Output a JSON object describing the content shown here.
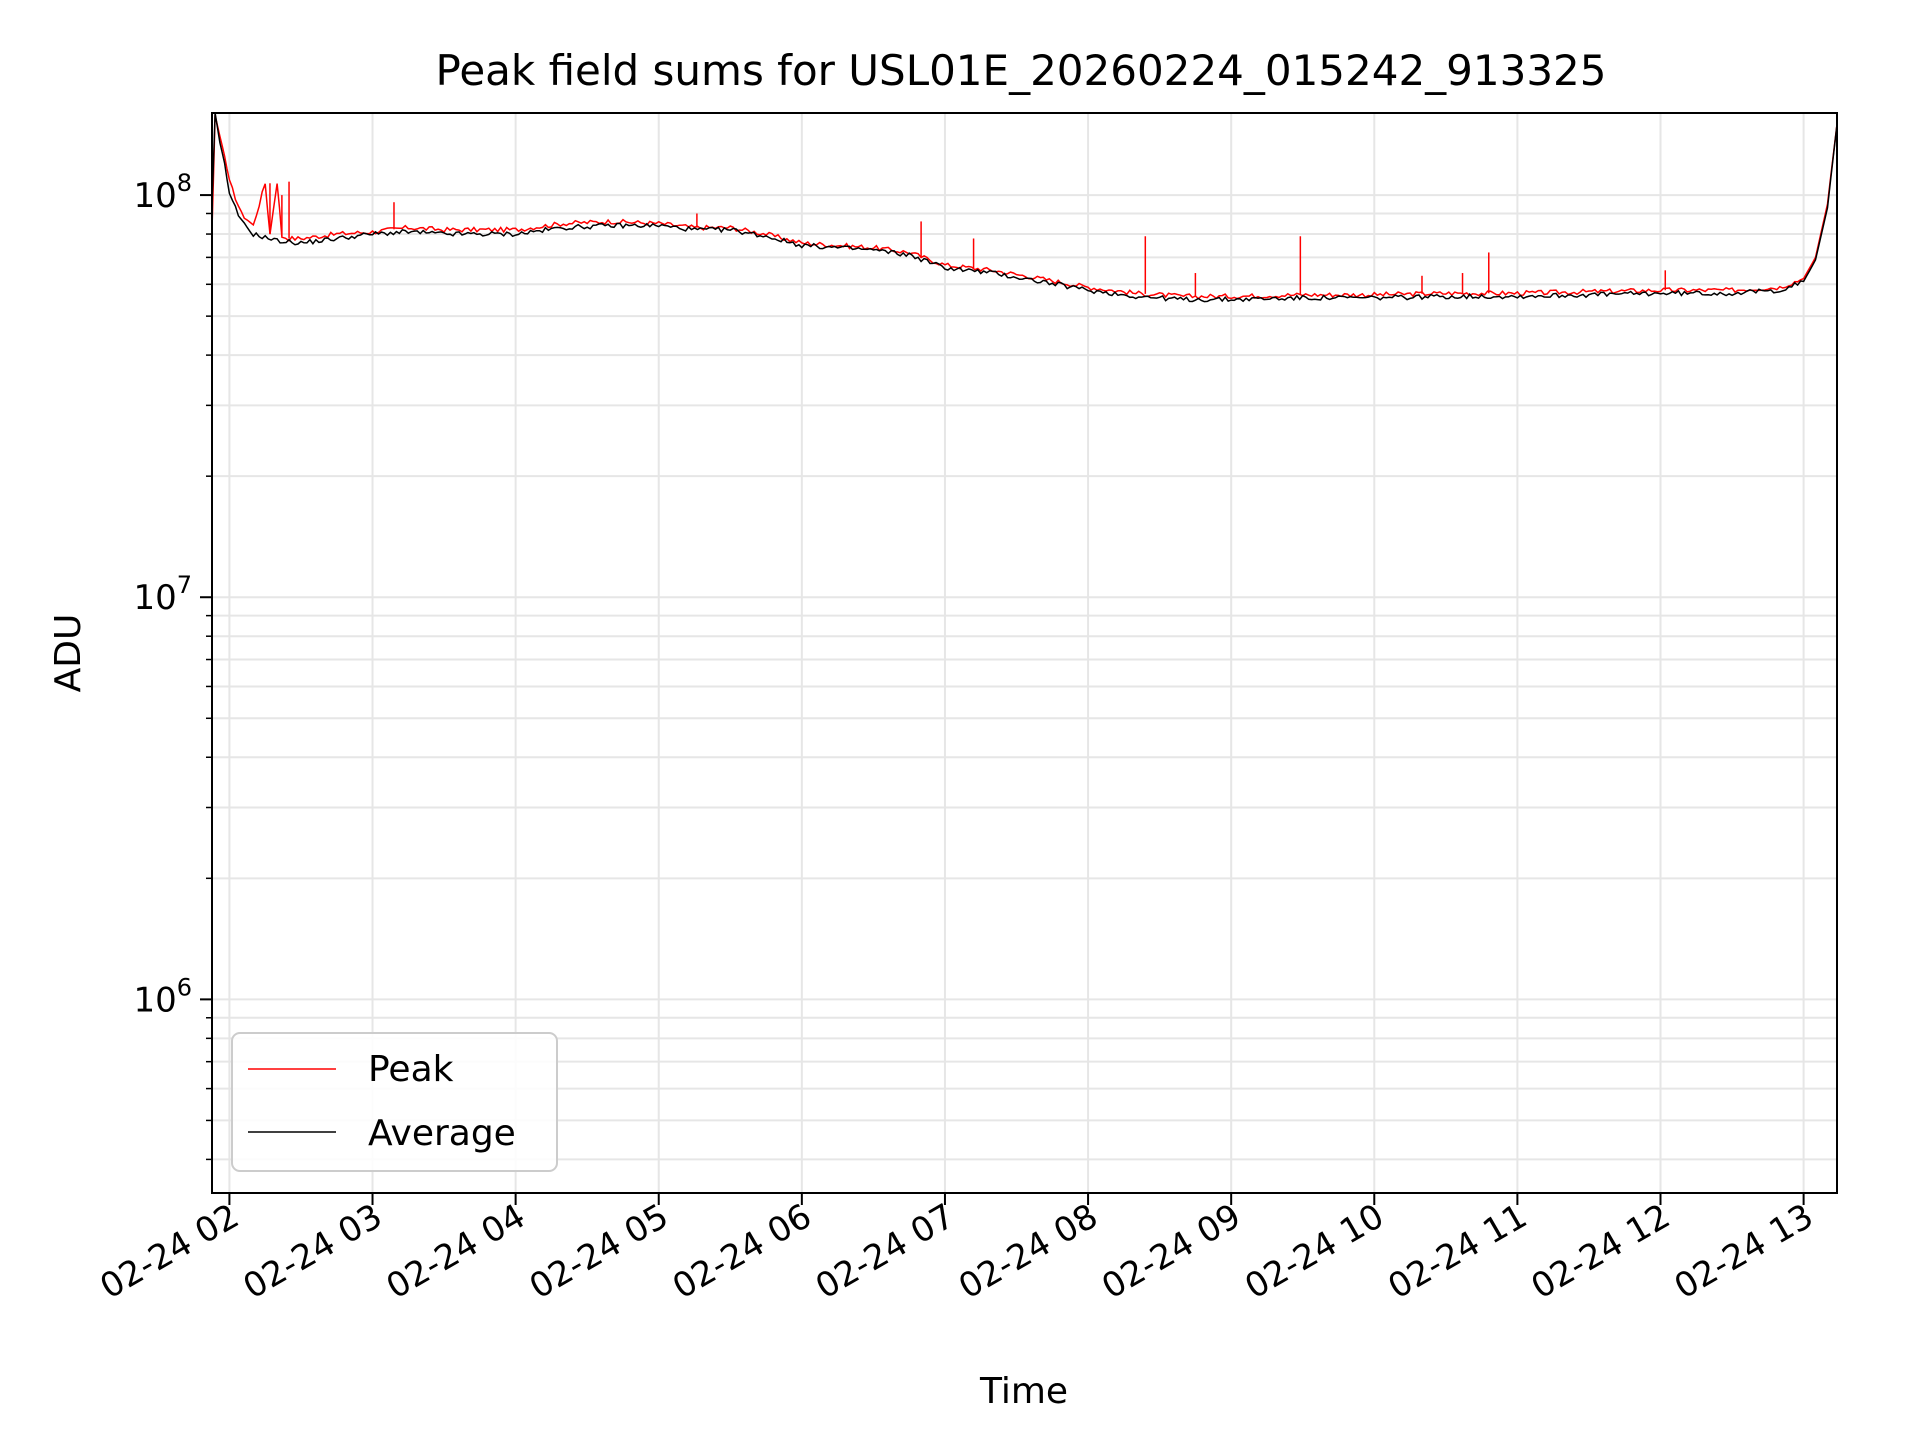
{
  "chart_data": {
    "type": "line",
    "title": "Peak field sums for USL01E_20260224_015242_913325",
    "xlabel": "Time",
    "ylabel": "ADU",
    "yscale": "log",
    "ylim": [
      330000,
      160000000
    ],
    "xlim": [
      "02-24 01:52:42",
      "02-24 13:14:00"
    ],
    "grid": true,
    "legend_position": "lower-left",
    "x_ticks": [
      "02-24 02",
      "02-24 03",
      "02-24 04",
      "02-24 05",
      "02-24 06",
      "02-24 07",
      "02-24 08",
      "02-24 09",
      "02-24 10",
      "02-24 11",
      "02-24 12",
      "02-24 13"
    ],
    "y_ticks": [
      {
        "base": "10",
        "exponent": "6",
        "value": 1000000
      },
      {
        "base": "10",
        "exponent": "7",
        "value": 10000000
      },
      {
        "base": "10",
        "exponent": "8",
        "value": 100000000
      }
    ],
    "series": [
      {
        "name": "Peak",
        "color": "#ff0000",
        "x": [
          "02-24 01:52:42",
          "02-24 01:54",
          "02-24 01:56",
          "02-24 01:58",
          "02-24 02:00",
          "02-24 02:05",
          "02-24 02:10",
          "02-24 02:15",
          "02-24 02:17",
          "02-24 02:20",
          "02-24 02:22",
          "02-24 02:25",
          "02-24 02:30",
          "02-24 02:45",
          "02-24 03:00",
          "02-24 03:15",
          "02-24 03:30",
          "02-24 04:00",
          "02-24 04:20",
          "02-24 04:40",
          "02-24 05:00",
          "02-24 05:15",
          "02-24 05:30",
          "02-24 05:45",
          "02-24 06:00",
          "02-24 06:15",
          "02-24 06:30",
          "02-24 06:45",
          "02-24 07:00",
          "02-24 07:20",
          "02-24 07:40",
          "02-24 08:00",
          "02-24 08:20",
          "02-24 08:40",
          "02-24 09:00",
          "02-24 09:30",
          "02-24 10:00",
          "02-24 10:30",
          "02-24 11:00",
          "02-24 11:30",
          "02-24 12:00",
          "02-24 12:30",
          "02-24 12:50",
          "02-24 13:00",
          "02-24 13:05",
          "02-24 13:10",
          "02-24 13:14"
        ],
        "y": [
          82000000,
          158000000,
          140000000,
          125000000,
          108000000,
          90000000,
          84000000,
          107000000,
          80000000,
          108000000,
          79000000,
          78000000,
          78000000,
          80000000,
          81000000,
          83000000,
          82000000,
          82000000,
          85000000,
          86000000,
          85000000,
          83000000,
          83000000,
          80000000,
          76000000,
          75000000,
          74000000,
          72000000,
          67000000,
          65000000,
          62000000,
          59000000,
          57000000,
          56000000,
          56000000,
          56500000,
          56500000,
          57000000,
          57000000,
          57500000,
          58000000,
          58000000,
          59000000,
          62000000,
          70000000,
          95000000,
          150000000
        ]
      },
      {
        "name": "Average",
        "color": "#000000",
        "x": [
          "02-24 01:52:42",
          "02-24 01:54",
          "02-24 01:56",
          "02-24 01:58",
          "02-24 02:00",
          "02-24 02:05",
          "02-24 02:10",
          "02-24 02:20",
          "02-24 02:30",
          "02-24 02:45",
          "02-24 03:00",
          "02-24 03:15",
          "02-24 03:30",
          "02-24 04:00",
          "02-24 04:20",
          "02-24 04:40",
          "02-24 05:00",
          "02-24 05:15",
          "02-24 05:30",
          "02-24 05:45",
          "02-24 06:00",
          "02-24 06:15",
          "02-24 06:30",
          "02-24 06:45",
          "02-24 07:00",
          "02-24 07:20",
          "02-24 07:40",
          "02-24 08:00",
          "02-24 08:20",
          "02-24 08:40",
          "02-24 09:00",
          "02-24 09:30",
          "02-24 10:00",
          "02-24 10:30",
          "02-24 11:00",
          "02-24 11:30",
          "02-24 12:00",
          "02-24 12:30",
          "02-24 12:50",
          "02-24 13:00",
          "02-24 13:05",
          "02-24 13:10",
          "02-24 13:14"
        ],
        "y": [
          95000000,
          160000000,
          135000000,
          120000000,
          100000000,
          86000000,
          80000000,
          77000000,
          76000000,
          78000000,
          80000000,
          81000000,
          80000000,
          80000000,
          83000000,
          84000000,
          84000000,
          82000000,
          82000000,
          79000000,
          75000000,
          74000000,
          73000000,
          71000000,
          66000000,
          64000000,
          61000000,
          58000000,
          56000000,
          55000000,
          55000000,
          55500000,
          55500000,
          56000000,
          56000000,
          56500000,
          57000000,
          57000000,
          58000000,
          61000000,
          69000000,
          93000000,
          150000000
        ]
      }
    ],
    "spikes": {
      "series": "Peak",
      "x": [
        "02-24 02:17",
        "02-24 02:22",
        "02-24 02:25",
        "02-24 03:09",
        "02-24 05:16",
        "02-24 06:50",
        "02-24 07:12",
        "02-24 08:24",
        "02-24 08:45",
        "02-24 09:29",
        "02-24 10:20",
        "02-24 10:37",
        "02-24 10:48",
        "02-24 12:02"
      ],
      "y": [
        107000000,
        100000000,
        108000000,
        96000000,
        90000000,
        86000000,
        78000000,
        79000000,
        64000000,
        79000000,
        63000000,
        64000000,
        72000000,
        65000000
      ]
    }
  }
}
